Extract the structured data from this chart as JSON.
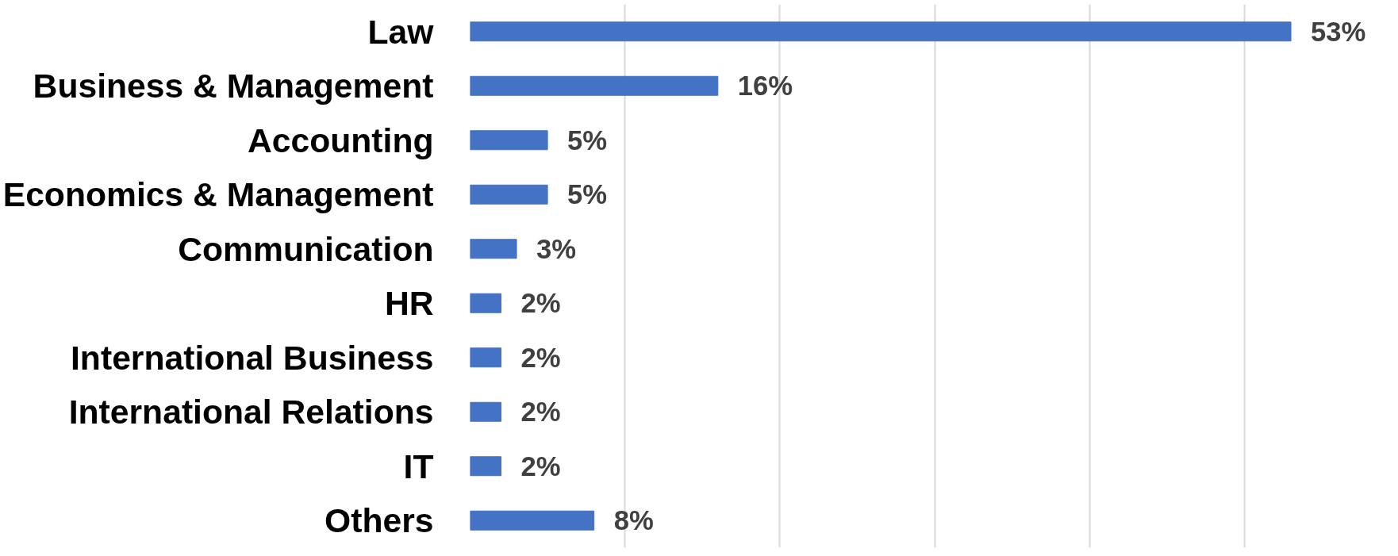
{
  "chart_data": {
    "type": "bar",
    "orientation": "horizontal",
    "categories": [
      "Law",
      "Business & Management",
      "Accounting",
      "Economics & Management",
      "Communication",
      "HR",
      "International Business",
      "International Relations",
      "IT",
      "Others"
    ],
    "values": [
      53,
      16,
      5,
      5,
      3,
      2,
      2,
      2,
      2,
      8
    ],
    "value_labels": [
      "53%",
      "16%",
      "5%",
      "5%",
      "3%",
      "2%",
      "2%",
      "2%",
      "2%",
      "8%"
    ],
    "color": "#4472c4",
    "grid": "x",
    "tick_labels": false
  }
}
